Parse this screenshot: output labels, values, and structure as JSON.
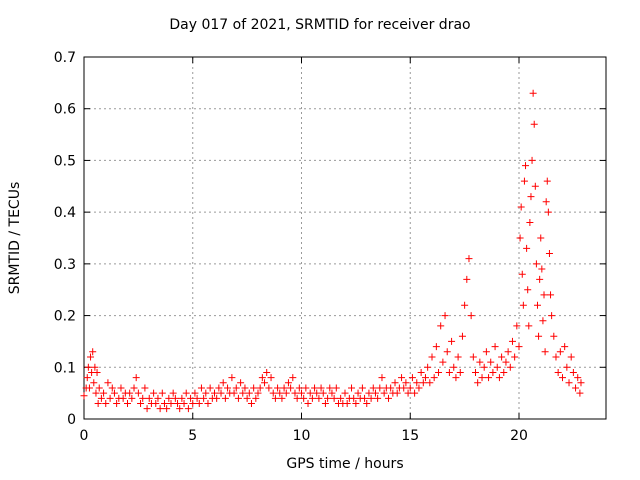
{
  "chart_data": {
    "type": "scatter",
    "title": "Day 017 of 2021, SRMTID for receiver drao",
    "xlabel": "GPS time / hours",
    "ylabel": "SRMTID / TECUs",
    "xlim": [
      0,
      24
    ],
    "ylim": [
      0,
      0.7
    ],
    "xticks": [
      0,
      5,
      10,
      15,
      20
    ],
    "yticks": [
      0,
      0.1,
      0.2,
      0.3,
      0.4,
      0.5,
      0.6,
      0.7
    ],
    "grid": true,
    "marker": "+",
    "color": "#ff0000",
    "series": [
      {
        "name": "SRMTID",
        "points": [
          [
            0.0,
            0.045
          ],
          [
            0.1,
            0.06
          ],
          [
            0.15,
            0.08
          ],
          [
            0.2,
            0.1
          ],
          [
            0.25,
            0.06
          ],
          [
            0.3,
            0.12
          ],
          [
            0.35,
            0.09
          ],
          [
            0.4,
            0.13
          ],
          [
            0.45,
            0.07
          ],
          [
            0.5,
            0.1
          ],
          [
            0.55,
            0.05
          ],
          [
            0.6,
            0.09
          ],
          [
            0.65,
            0.03
          ],
          [
            0.7,
            0.06
          ],
          [
            0.8,
            0.04
          ],
          [
            0.9,
            0.05
          ],
          [
            1.0,
            0.03
          ],
          [
            1.1,
            0.07
          ],
          [
            1.2,
            0.04
          ],
          [
            1.3,
            0.06
          ],
          [
            1.4,
            0.05
          ],
          [
            1.5,
            0.03
          ],
          [
            1.6,
            0.04
          ],
          [
            1.7,
            0.06
          ],
          [
            1.8,
            0.04
          ],
          [
            1.9,
            0.05
          ],
          [
            2.0,
            0.03
          ],
          [
            2.1,
            0.05
          ],
          [
            2.2,
            0.04
          ],
          [
            2.3,
            0.06
          ],
          [
            2.4,
            0.08
          ],
          [
            2.5,
            0.05
          ],
          [
            2.6,
            0.03
          ],
          [
            2.7,
            0.04
          ],
          [
            2.8,
            0.06
          ],
          [
            2.9,
            0.02
          ],
          [
            3.0,
            0.04
          ],
          [
            3.1,
            0.03
          ],
          [
            3.2,
            0.05
          ],
          [
            3.3,
            0.03
          ],
          [
            3.4,
            0.04
          ],
          [
            3.5,
            0.02
          ],
          [
            3.6,
            0.05
          ],
          [
            3.7,
            0.03
          ],
          [
            3.8,
            0.02
          ],
          [
            3.9,
            0.04
          ],
          [
            4.0,
            0.03
          ],
          [
            4.1,
            0.05
          ],
          [
            4.2,
            0.04
          ],
          [
            4.3,
            0.03
          ],
          [
            4.4,
            0.02
          ],
          [
            4.5,
            0.04
          ],
          [
            4.6,
            0.03
          ],
          [
            4.7,
            0.05
          ],
          [
            4.8,
            0.02
          ],
          [
            4.9,
            0.04
          ],
          [
            5.0,
            0.03
          ],
          [
            5.1,
            0.05
          ],
          [
            5.2,
            0.04
          ],
          [
            5.3,
            0.03
          ],
          [
            5.4,
            0.06
          ],
          [
            5.5,
            0.04
          ],
          [
            5.6,
            0.05
          ],
          [
            5.7,
            0.03
          ],
          [
            5.8,
            0.06
          ],
          [
            5.9,
            0.04
          ],
          [
            6.0,
            0.05
          ],
          [
            6.1,
            0.04
          ],
          [
            6.2,
            0.06
          ],
          [
            6.3,
            0.05
          ],
          [
            6.4,
            0.07
          ],
          [
            6.5,
            0.04
          ],
          [
            6.6,
            0.06
          ],
          [
            6.7,
            0.05
          ],
          [
            6.8,
            0.08
          ],
          [
            6.9,
            0.05
          ],
          [
            7.0,
            0.06
          ],
          [
            7.1,
            0.04
          ],
          [
            7.2,
            0.07
          ],
          [
            7.3,
            0.05
          ],
          [
            7.4,
            0.06
          ],
          [
            7.5,
            0.04
          ],
          [
            7.6,
            0.05
          ],
          [
            7.7,
            0.03
          ],
          [
            7.8,
            0.06
          ],
          [
            7.9,
            0.04
          ],
          [
            8.0,
            0.05
          ],
          [
            8.1,
            0.06
          ],
          [
            8.2,
            0.08
          ],
          [
            8.3,
            0.07
          ],
          [
            8.4,
            0.09
          ],
          [
            8.5,
            0.06
          ],
          [
            8.6,
            0.08
          ],
          [
            8.7,
            0.05
          ],
          [
            8.8,
            0.04
          ],
          [
            8.9,
            0.06
          ],
          [
            9.0,
            0.05
          ],
          [
            9.1,
            0.04
          ],
          [
            9.2,
            0.06
          ],
          [
            9.3,
            0.05
          ],
          [
            9.4,
            0.07
          ],
          [
            9.5,
            0.06
          ],
          [
            9.6,
            0.08
          ],
          [
            9.7,
            0.05
          ],
          [
            9.8,
            0.04
          ],
          [
            9.9,
            0.06
          ],
          [
            10.0,
            0.05
          ],
          [
            10.1,
            0.04
          ],
          [
            10.2,
            0.06
          ],
          [
            10.3,
            0.03
          ],
          [
            10.4,
            0.05
          ],
          [
            10.5,
            0.04
          ],
          [
            10.6,
            0.06
          ],
          [
            10.7,
            0.05
          ],
          [
            10.8,
            0.04
          ],
          [
            10.9,
            0.06
          ],
          [
            11.0,
            0.05
          ],
          [
            11.1,
            0.03
          ],
          [
            11.2,
            0.04
          ],
          [
            11.3,
            0.06
          ],
          [
            11.4,
            0.05
          ],
          [
            11.5,
            0.04
          ],
          [
            11.6,
            0.06
          ],
          [
            11.7,
            0.03
          ],
          [
            11.8,
            0.04
          ],
          [
            11.9,
            0.03
          ],
          [
            12.0,
            0.05
          ],
          [
            12.1,
            0.03
          ],
          [
            12.2,
            0.04
          ],
          [
            12.3,
            0.06
          ],
          [
            12.4,
            0.04
          ],
          [
            12.5,
            0.03
          ],
          [
            12.6,
            0.05
          ],
          [
            12.7,
            0.04
          ],
          [
            12.8,
            0.06
          ],
          [
            12.9,
            0.04
          ],
          [
            13.0,
            0.03
          ],
          [
            13.1,
            0.05
          ],
          [
            13.2,
            0.04
          ],
          [
            13.3,
            0.06
          ],
          [
            13.4,
            0.05
          ],
          [
            13.5,
            0.04
          ],
          [
            13.6,
            0.06
          ],
          [
            13.7,
            0.08
          ],
          [
            13.8,
            0.05
          ],
          [
            13.9,
            0.06
          ],
          [
            14.0,
            0.04
          ],
          [
            14.1,
            0.06
          ],
          [
            14.2,
            0.05
          ],
          [
            14.3,
            0.07
          ],
          [
            14.4,
            0.05
          ],
          [
            14.5,
            0.06
          ],
          [
            14.6,
            0.08
          ],
          [
            14.7,
            0.06
          ],
          [
            14.8,
            0.07
          ],
          [
            14.9,
            0.05
          ],
          [
            15.0,
            0.06
          ],
          [
            15.1,
            0.08
          ],
          [
            15.2,
            0.05
          ],
          [
            15.3,
            0.07
          ],
          [
            15.4,
            0.06
          ],
          [
            15.5,
            0.09
          ],
          [
            15.6,
            0.07
          ],
          [
            15.7,
            0.08
          ],
          [
            15.8,
            0.1
          ],
          [
            15.9,
            0.07
          ],
          [
            16.0,
            0.12
          ],
          [
            16.1,
            0.08
          ],
          [
            16.2,
            0.14
          ],
          [
            16.3,
            0.09
          ],
          [
            16.4,
            0.18
          ],
          [
            16.5,
            0.11
          ],
          [
            16.6,
            0.2
          ],
          [
            16.7,
            0.13
          ],
          [
            16.8,
            0.09
          ],
          [
            16.9,
            0.15
          ],
          [
            17.0,
            0.1
          ],
          [
            17.1,
            0.08
          ],
          [
            17.2,
            0.12
          ],
          [
            17.3,
            0.09
          ],
          [
            17.4,
            0.16
          ],
          [
            17.5,
            0.22
          ],
          [
            17.6,
            0.27
          ],
          [
            17.7,
            0.31
          ],
          [
            17.8,
            0.2
          ],
          [
            17.9,
            0.12
          ],
          [
            18.0,
            0.09
          ],
          [
            18.1,
            0.07
          ],
          [
            18.2,
            0.11
          ],
          [
            18.3,
            0.08
          ],
          [
            18.4,
            0.1
          ],
          [
            18.5,
            0.13
          ],
          [
            18.6,
            0.08
          ],
          [
            18.7,
            0.11
          ],
          [
            18.8,
            0.09
          ],
          [
            18.9,
            0.14
          ],
          [
            19.0,
            0.1
          ],
          [
            19.1,
            0.08
          ],
          [
            19.2,
            0.12
          ],
          [
            19.3,
            0.09
          ],
          [
            19.4,
            0.11
          ],
          [
            19.5,
            0.13
          ],
          [
            19.6,
            0.1
          ],
          [
            19.7,
            0.15
          ],
          [
            19.8,
            0.12
          ],
          [
            19.9,
            0.18
          ],
          [
            20.0,
            0.14
          ],
          [
            20.05,
            0.35
          ],
          [
            20.1,
            0.41
          ],
          [
            20.15,
            0.28
          ],
          [
            20.2,
            0.22
          ],
          [
            20.25,
            0.46
          ],
          [
            20.3,
            0.49
          ],
          [
            20.35,
            0.33
          ],
          [
            20.4,
            0.25
          ],
          [
            20.45,
            0.18
          ],
          [
            20.5,
            0.38
          ],
          [
            20.55,
            0.43
          ],
          [
            20.6,
            0.5
          ],
          [
            20.65,
            0.63
          ],
          [
            20.7,
            0.57
          ],
          [
            20.75,
            0.45
          ],
          [
            20.8,
            0.3
          ],
          [
            20.85,
            0.22
          ],
          [
            20.9,
            0.16
          ],
          [
            20.95,
            0.27
          ],
          [
            21.0,
            0.35
          ],
          [
            21.05,
            0.29
          ],
          [
            21.1,
            0.19
          ],
          [
            21.15,
            0.24
          ],
          [
            21.2,
            0.13
          ],
          [
            21.25,
            0.42
          ],
          [
            21.3,
            0.46
          ],
          [
            21.35,
            0.4
          ],
          [
            21.4,
            0.32
          ],
          [
            21.45,
            0.24
          ],
          [
            21.5,
            0.2
          ],
          [
            21.6,
            0.16
          ],
          [
            21.7,
            0.12
          ],
          [
            21.8,
            0.09
          ],
          [
            21.9,
            0.13
          ],
          [
            22.0,
            0.08
          ],
          [
            22.1,
            0.14
          ],
          [
            22.2,
            0.1
          ],
          [
            22.3,
            0.07
          ],
          [
            22.4,
            0.12
          ],
          [
            22.5,
            0.09
          ],
          [
            22.6,
            0.06
          ],
          [
            22.7,
            0.08
          ],
          [
            22.8,
            0.05
          ],
          [
            22.85,
            0.07
          ]
        ]
      }
    ]
  }
}
